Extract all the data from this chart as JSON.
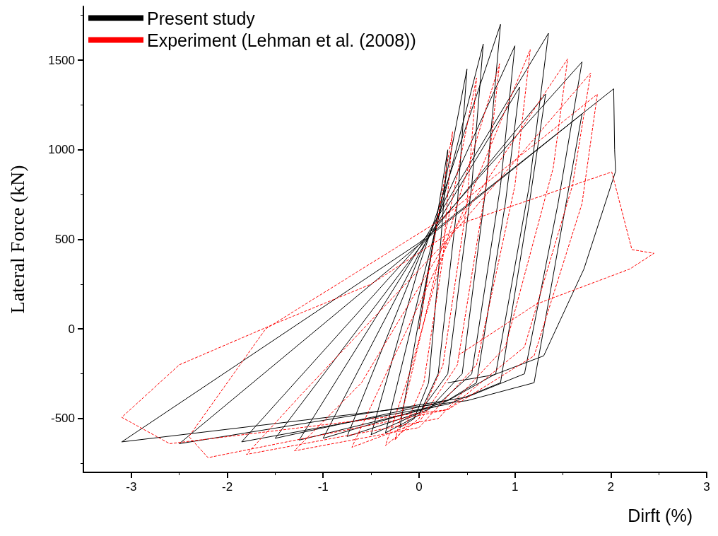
{
  "chart_data": {
    "type": "line",
    "xlabel": "Dirft (%)",
    "ylabel": "Lateral Force (kN)",
    "xlim": [
      -3.5,
      3
    ],
    "xticks": [
      -3,
      -2,
      -1,
      0,
      1,
      2,
      3
    ],
    "ylim": [
      -800,
      1800
    ],
    "yticks": [
      -500,
      0,
      500,
      1000,
      1500
    ],
    "grid": false,
    "legend": "top left",
    "marker": "none",
    "series": [
      {
        "name": "Present study",
        "color": "#000000",
        "line_style": "solid",
        "x": [
          0,
          0.3,
          0.2,
          0.1,
          -0.05,
          -0.2,
          0.05,
          0.5,
          0.4,
          0.2,
          0,
          -0.35,
          0.05,
          0.67,
          0.55,
          0.3,
          0,
          -0.5,
          0,
          0.85,
          0.7,
          0.45,
          0.1,
          -0.75,
          0,
          1.0,
          0.85,
          0.55,
          0.2,
          -1.0,
          0,
          1.05,
          0.9,
          0.6,
          0.2,
          -1.25,
          0,
          1.35,
          1.15,
          0.8,
          0.3,
          -1.5,
          0,
          1.32,
          1.15,
          0.85,
          0.3,
          -1.85,
          0,
          1.7,
          1.45,
          1.1,
          0.5,
          -2.5,
          0,
          1.7,
          1.5,
          1.2,
          0.5,
          -3.1,
          0,
          2.03,
          2.04,
          2.05,
          1.72,
          1.3,
          0.78,
          0.3
        ],
        "values": [
          0,
          1000,
          300,
          -300,
          -500,
          -550,
          200,
          1450,
          700,
          -250,
          -480,
          -580,
          300,
          1590,
          800,
          -250,
          -470,
          -590,
          350,
          1700,
          800,
          -250,
          -450,
          -600,
          400,
          1580,
          800,
          -250,
          -420,
          -610,
          420,
          1350,
          700,
          -300,
          -430,
          -620,
          450,
          1650,
          800,
          -250,
          -400,
          -610,
          450,
          1310,
          700,
          -300,
          -420,
          -630,
          470,
          1490,
          700,
          -250,
          -380,
          -640,
          470,
          1200,
          600,
          -300,
          -400,
          -630,
          480,
          1340,
          1000,
          880,
          335,
          -150,
          -256,
          -300
        ]
      },
      {
        "name": "Experiment (Lehman et al. (2008))",
        "color": "#ff0000",
        "line_style": "dashed",
        "x": [
          0,
          0.35,
          0.25,
          0.05,
          -0.15,
          -0.25,
          -0.1,
          0.3,
          0.6,
          0.5,
          0.25,
          0,
          -0.35,
          -0.1,
          0.4,
          0.84,
          0.7,
          0.4,
          0,
          -0.7,
          -0.3,
          0.5,
          1.16,
          1.0,
          0.6,
          0,
          -1.3,
          -0.6,
          0.3,
          1.55,
          1.4,
          0.9,
          0.2,
          -1.8,
          -1.2,
          0.3,
          1.79,
          1.6,
          1.1,
          0.3,
          -2.2,
          -2.4,
          -1.6,
          0.2,
          1.86,
          1.7,
          1.2,
          0.3,
          -2.6,
          -3.1,
          -2.5,
          -1.5,
          -0.5,
          0.5,
          2.01,
          2.22,
          2.45,
          2.2,
          1.22,
          0.4
        ],
        "values": [
          0,
          1100,
          400,
          -300,
          -550,
          -620,
          -300,
          600,
          1400,
          700,
          -200,
          -500,
          -650,
          -250,
          700,
          1480,
          800,
          -200,
          -520,
          -660,
          -200,
          700,
          1559,
          800,
          -200,
          -550,
          -680,
          -300,
          500,
          1507,
          900,
          -100,
          -500,
          -700,
          -350,
          500,
          1428,
          800,
          -100,
          -450,
          -718,
          -600,
          0,
          600,
          1310,
          700,
          -150,
          -450,
          -640,
          -493,
          -200,
          30,
          250,
          600,
          876,
          443,
          422,
          335,
          138,
          -150
        ]
      }
    ]
  }
}
